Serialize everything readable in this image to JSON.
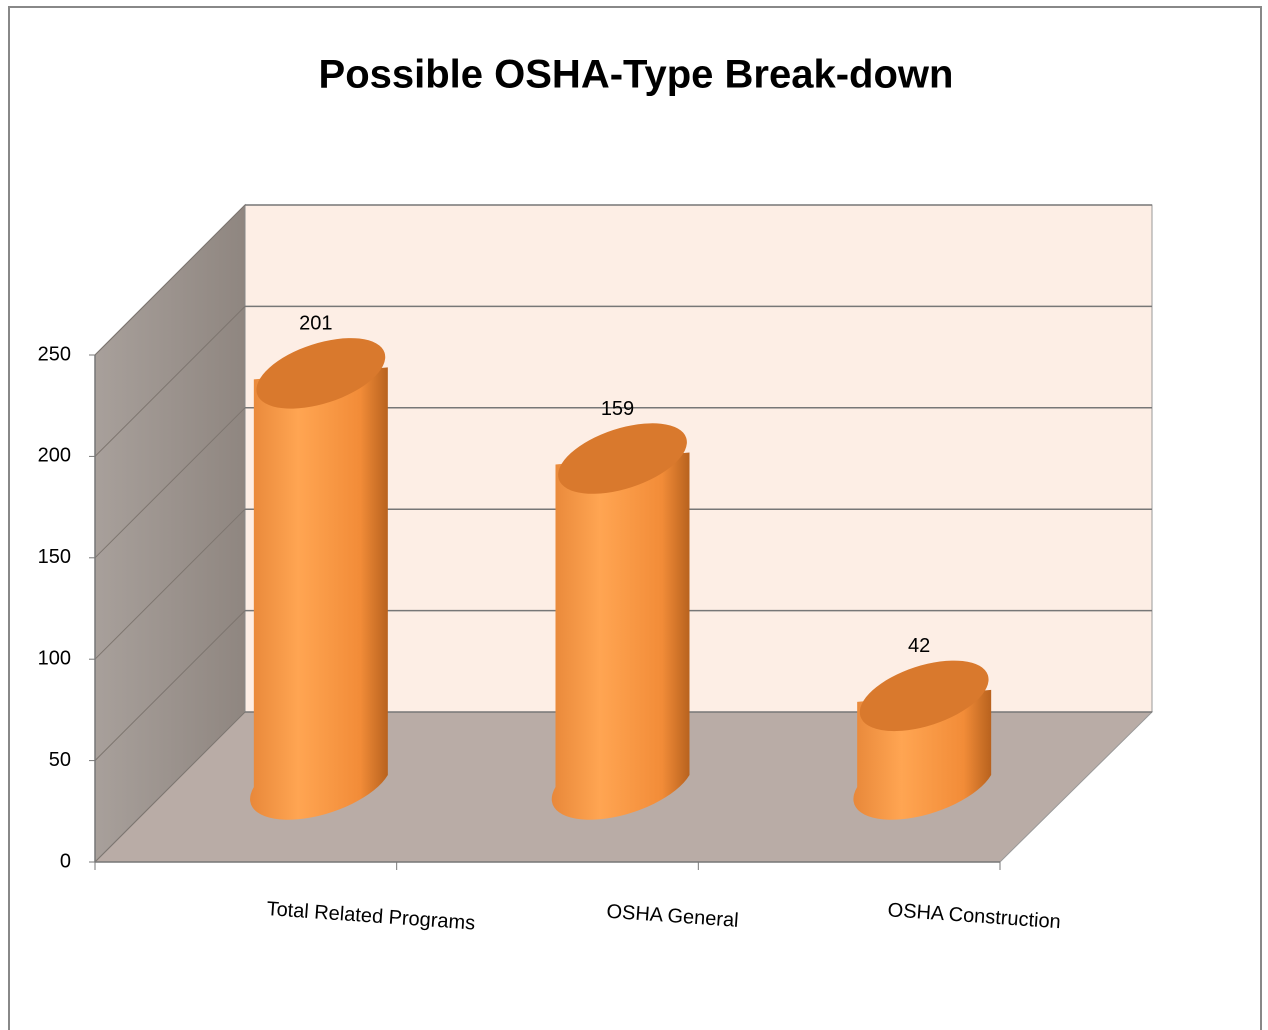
{
  "chart_data": {
    "type": "bar3d",
    "title": "Possible OSHA-Type Break-down",
    "categories": [
      "Total Related Programs",
      "OSHA General",
      "OSHA Construction"
    ],
    "values": [
      201,
      159,
      42
    ],
    "color": "#f79646",
    "ylim": [
      0,
      250
    ],
    "yticks": [
      0,
      50,
      100,
      150,
      200,
      250
    ],
    "grid": true
  }
}
